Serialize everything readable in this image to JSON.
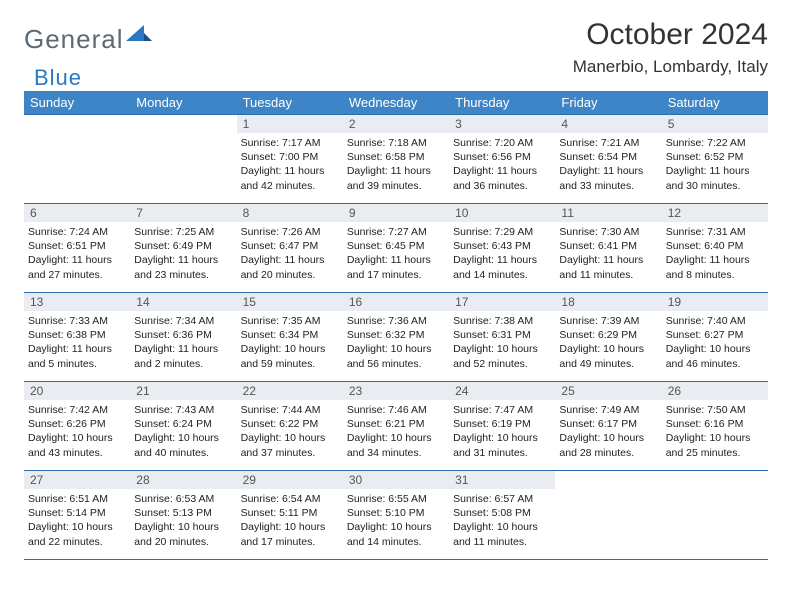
{
  "logo": {
    "text1": "General",
    "text2": "Blue"
  },
  "title": "October 2024",
  "location": "Manerbio, Lombardy, Italy",
  "colors": {
    "header_bg": "#3d85c6",
    "header_text": "#ffffff",
    "border": "#2b6bab",
    "daynum_bg": "#e9edf1",
    "logo_gray": "#5e6a73",
    "logo_blue": "#2b78c2"
  },
  "weekdays": [
    "Sunday",
    "Monday",
    "Tuesday",
    "Wednesday",
    "Thursday",
    "Friday",
    "Saturday"
  ],
  "layout": {
    "first_weekday_index": 2,
    "days_in_month": 31
  },
  "days": {
    "1": {
      "sunrise": "7:17 AM",
      "sunset": "7:00 PM",
      "daylight": "11 hours and 42 minutes."
    },
    "2": {
      "sunrise": "7:18 AM",
      "sunset": "6:58 PM",
      "daylight": "11 hours and 39 minutes."
    },
    "3": {
      "sunrise": "7:20 AM",
      "sunset": "6:56 PM",
      "daylight": "11 hours and 36 minutes."
    },
    "4": {
      "sunrise": "7:21 AM",
      "sunset": "6:54 PM",
      "daylight": "11 hours and 33 minutes."
    },
    "5": {
      "sunrise": "7:22 AM",
      "sunset": "6:52 PM",
      "daylight": "11 hours and 30 minutes."
    },
    "6": {
      "sunrise": "7:24 AM",
      "sunset": "6:51 PM",
      "daylight": "11 hours and 27 minutes."
    },
    "7": {
      "sunrise": "7:25 AM",
      "sunset": "6:49 PM",
      "daylight": "11 hours and 23 minutes."
    },
    "8": {
      "sunrise": "7:26 AM",
      "sunset": "6:47 PM",
      "daylight": "11 hours and 20 minutes."
    },
    "9": {
      "sunrise": "7:27 AM",
      "sunset": "6:45 PM",
      "daylight": "11 hours and 17 minutes."
    },
    "10": {
      "sunrise": "7:29 AM",
      "sunset": "6:43 PM",
      "daylight": "11 hours and 14 minutes."
    },
    "11": {
      "sunrise": "7:30 AM",
      "sunset": "6:41 PM",
      "daylight": "11 hours and 11 minutes."
    },
    "12": {
      "sunrise": "7:31 AM",
      "sunset": "6:40 PM",
      "daylight": "11 hours and 8 minutes."
    },
    "13": {
      "sunrise": "7:33 AM",
      "sunset": "6:38 PM",
      "daylight": "11 hours and 5 minutes."
    },
    "14": {
      "sunrise": "7:34 AM",
      "sunset": "6:36 PM",
      "daylight": "11 hours and 2 minutes."
    },
    "15": {
      "sunrise": "7:35 AM",
      "sunset": "6:34 PM",
      "daylight": "10 hours and 59 minutes."
    },
    "16": {
      "sunrise": "7:36 AM",
      "sunset": "6:32 PM",
      "daylight": "10 hours and 56 minutes."
    },
    "17": {
      "sunrise": "7:38 AM",
      "sunset": "6:31 PM",
      "daylight": "10 hours and 52 minutes."
    },
    "18": {
      "sunrise": "7:39 AM",
      "sunset": "6:29 PM",
      "daylight": "10 hours and 49 minutes."
    },
    "19": {
      "sunrise": "7:40 AM",
      "sunset": "6:27 PM",
      "daylight": "10 hours and 46 minutes."
    },
    "20": {
      "sunrise": "7:42 AM",
      "sunset": "6:26 PM",
      "daylight": "10 hours and 43 minutes."
    },
    "21": {
      "sunrise": "7:43 AM",
      "sunset": "6:24 PM",
      "daylight": "10 hours and 40 minutes."
    },
    "22": {
      "sunrise": "7:44 AM",
      "sunset": "6:22 PM",
      "daylight": "10 hours and 37 minutes."
    },
    "23": {
      "sunrise": "7:46 AM",
      "sunset": "6:21 PM",
      "daylight": "10 hours and 34 minutes."
    },
    "24": {
      "sunrise": "7:47 AM",
      "sunset": "6:19 PM",
      "daylight": "10 hours and 31 minutes."
    },
    "25": {
      "sunrise": "7:49 AM",
      "sunset": "6:17 PM",
      "daylight": "10 hours and 28 minutes."
    },
    "26": {
      "sunrise": "7:50 AM",
      "sunset": "6:16 PM",
      "daylight": "10 hours and 25 minutes."
    },
    "27": {
      "sunrise": "6:51 AM",
      "sunset": "5:14 PM",
      "daylight": "10 hours and 22 minutes."
    },
    "28": {
      "sunrise": "6:53 AM",
      "sunset": "5:13 PM",
      "daylight": "10 hours and 20 minutes."
    },
    "29": {
      "sunrise": "6:54 AM",
      "sunset": "5:11 PM",
      "daylight": "10 hours and 17 minutes."
    },
    "30": {
      "sunrise": "6:55 AM",
      "sunset": "5:10 PM",
      "daylight": "10 hours and 14 minutes."
    },
    "31": {
      "sunrise": "6:57 AM",
      "sunset": "5:08 PM",
      "daylight": "10 hours and 11 minutes."
    }
  },
  "labels": {
    "sunrise": "Sunrise:",
    "sunset": "Sunset:",
    "daylight": "Daylight:"
  }
}
